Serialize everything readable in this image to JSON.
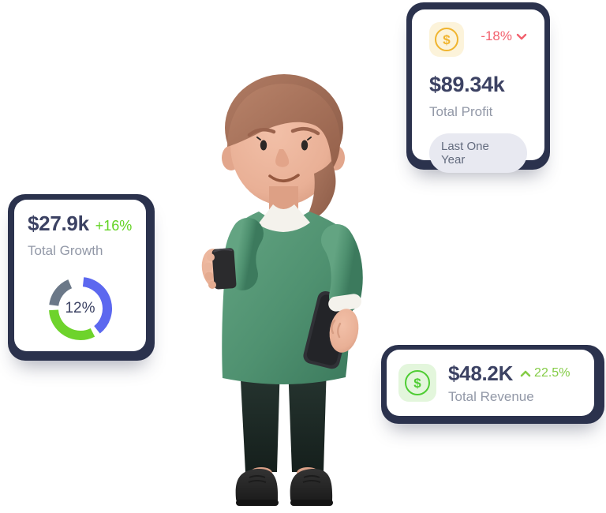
{
  "colors": {
    "card_shadow_navy": "#2b324d",
    "text_primary": "#3c4263",
    "text_secondary": "#9298a7",
    "negative": "#f2606d",
    "positive": "#63d323",
    "positive_muted": "#84cc46",
    "profit_icon": "#f0b42e",
    "profit_icon_bg": "#fcf3da",
    "revenue_icon": "#4ecd33",
    "revenue_icon_bg": "#e3f6dc",
    "badge_bg": "#e8e9f1",
    "badge_text": "#636b7e"
  },
  "icons": {
    "dollar_glyph": "$"
  },
  "profit_card": {
    "value": "$89.34k",
    "label": "Total Profit",
    "change": "-18%",
    "trend": "down",
    "period_badge": "Last One Year"
  },
  "growth_card": {
    "value": "$27.9k",
    "change": "+16%",
    "label": "Total Growth"
  },
  "revenue_card": {
    "value": "$48.2K",
    "change": "22.5%",
    "trend": "up",
    "label": "Total Revenue"
  },
  "chart_data": {
    "type": "pie",
    "variant": "donut",
    "title": "Total Growth",
    "center_label": "12%",
    "legend": "none",
    "segments": [
      {
        "name": "blue",
        "color": "#5c68ef",
        "start_angle": 6,
        "end_angle": 142,
        "value_pct": 38
      },
      {
        "name": "green",
        "color": "#6ed32c",
        "start_angle": 153,
        "end_angle": 267,
        "value_pct": 32
      },
      {
        "name": "gray",
        "color": "#6b7888",
        "start_angle": 277,
        "end_angle": 337,
        "value_pct": 17
      }
    ]
  },
  "illustration": {
    "alt": "3D person with auburn hair in green sweater holding a dark mug and a tablet"
  }
}
